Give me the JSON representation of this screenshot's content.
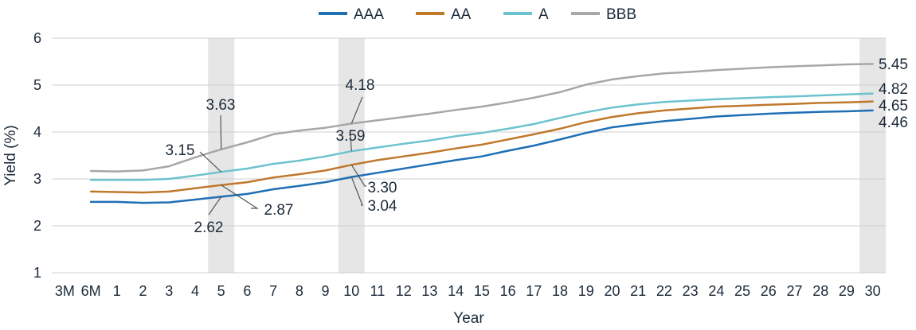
{
  "chart_data": {
    "type": "line",
    "xlabel": "Year",
    "ylabel": "Yield (%)",
    "ylim": [
      1,
      6
    ],
    "yticks": [
      "1",
      "2",
      "3",
      "4",
      "5",
      "6"
    ],
    "grid": "horizontal",
    "legend_position": "top-center",
    "categories": [
      "3M",
      "6M",
      "1",
      "2",
      "3",
      "4",
      "5",
      "6",
      "7",
      "8",
      "9",
      "10",
      "11",
      "12",
      "13",
      "14",
      "15",
      "16",
      "17",
      "18",
      "19",
      "20",
      "21",
      "22",
      "23",
      "24",
      "25",
      "26",
      "27",
      "28",
      "29",
      "30"
    ],
    "highlighted_categories": [
      "5",
      "10",
      "30"
    ],
    "series": [
      {
        "name": "AAA",
        "color": "#1f6fb5",
        "values": [
          null,
          2.51,
          2.51,
          2.49,
          2.5,
          2.56,
          2.62,
          2.68,
          2.78,
          2.85,
          2.93,
          3.04,
          3.13,
          3.22,
          3.31,
          3.4,
          3.48,
          3.6,
          3.71,
          3.84,
          3.98,
          4.1,
          4.17,
          4.23,
          4.28,
          4.33,
          4.36,
          4.39,
          4.41,
          4.43,
          4.44,
          4.46
        ]
      },
      {
        "name": "AA",
        "color": "#c0782c",
        "values": [
          null,
          2.73,
          2.72,
          2.71,
          2.73,
          2.8,
          2.87,
          2.93,
          3.03,
          3.1,
          3.18,
          3.3,
          3.4,
          3.48,
          3.56,
          3.65,
          3.73,
          3.84,
          3.95,
          4.07,
          4.21,
          4.32,
          4.4,
          4.46,
          4.5,
          4.54,
          4.56,
          4.58,
          4.6,
          4.62,
          4.63,
          4.65
        ]
      },
      {
        "name": "A",
        "color": "#6cc3cf",
        "values": [
          null,
          2.98,
          2.98,
          2.98,
          3.0,
          3.07,
          3.15,
          3.22,
          3.32,
          3.39,
          3.48,
          3.59,
          3.67,
          3.75,
          3.82,
          3.91,
          3.98,
          4.07,
          4.17,
          4.3,
          4.42,
          4.52,
          4.59,
          4.64,
          4.67,
          4.7,
          4.72,
          4.74,
          4.76,
          4.78,
          4.8,
          4.82
        ]
      },
      {
        "name": "BBB",
        "color": "#a7a7a7",
        "values": [
          null,
          3.17,
          3.16,
          3.18,
          3.27,
          3.46,
          3.63,
          3.78,
          3.95,
          4.03,
          4.09,
          4.18,
          4.25,
          4.32,
          4.39,
          4.47,
          4.54,
          4.63,
          4.73,
          4.85,
          5.01,
          5.12,
          5.19,
          5.25,
          5.28,
          5.32,
          5.35,
          5.38,
          5.4,
          5.42,
          5.44,
          5.45
        ]
      }
    ],
    "annotations": [
      {
        "text": "3.63",
        "series": "BBB",
        "category": "5"
      },
      {
        "text": "3.15",
        "series": "A",
        "category": "5"
      },
      {
        "text": "2.87",
        "series": "AA",
        "category": "5"
      },
      {
        "text": "2.62",
        "series": "AAA",
        "category": "5"
      },
      {
        "text": "4.18",
        "series": "BBB",
        "category": "10"
      },
      {
        "text": "3.59",
        "series": "A",
        "category": "10"
      },
      {
        "text": "3.30",
        "series": "AA",
        "category": "10"
      },
      {
        "text": "3.04",
        "series": "AAA",
        "category": "10"
      },
      {
        "text": "5.45",
        "series": "BBB",
        "category": "30"
      },
      {
        "text": "4.82",
        "series": "A",
        "category": "30"
      },
      {
        "text": "4.65",
        "series": "AA",
        "category": "30"
      },
      {
        "text": "4.46",
        "series": "AAA",
        "category": "30"
      }
    ]
  }
}
